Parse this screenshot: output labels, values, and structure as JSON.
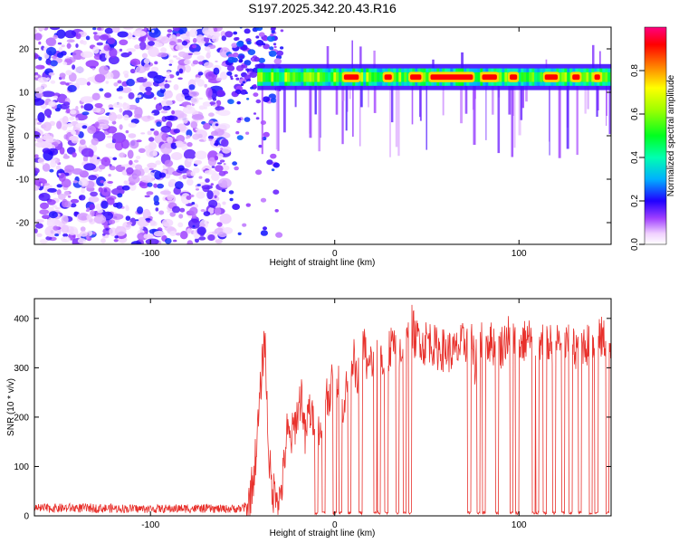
{
  "title": "S197.2025.342.20.43.R16",
  "chart_data": [
    {
      "type": "heatmap",
      "name": "spectrogram",
      "xlabel": "Height of straight line (km)",
      "ylabel": "Frequency (Hz)",
      "xlim": [
        -163,
        150
      ],
      "ylim": [
        -25,
        25
      ],
      "xticks": [
        -100,
        0,
        100
      ],
      "yticks": [
        -20,
        -10,
        0,
        10,
        20
      ],
      "noise_region": {
        "x_range": [
          -163,
          -58
        ],
        "note": "scattered violet/purple noise across all frequencies"
      },
      "transition": {
        "x_range": [
          -58,
          -28
        ]
      },
      "signal_band": {
        "x_range": [
          -42,
          150
        ],
        "center_frequency": 13.5,
        "half_width_hz": 2,
        "peak_segments_x": [
          [
            4,
            14
          ],
          [
            26,
            32
          ],
          [
            40,
            48
          ],
          [
            51,
            76
          ],
          [
            79,
            89
          ],
          [
            94,
            100
          ],
          [
            113,
            122
          ],
          [
            128,
            134
          ],
          [
            140,
            145
          ]
        ]
      },
      "colorbar": {
        "label": "Normalized spectral amplitude",
        "ticks": [
          0.0,
          0.2,
          0.4,
          0.6,
          0.8
        ],
        "range": [
          0.0,
          1.0
        ],
        "colormap": [
          "#ffffff",
          "#f6e2ff",
          "#b060ff",
          "#5000ff",
          "#0000ff",
          "#00c8ff",
          "#00ff80",
          "#80ff00",
          "#ffff00",
          "#ff8000",
          "#ff0000",
          "#ff0080"
        ]
      }
    },
    {
      "type": "line",
      "name": "snr",
      "xlabel": "Height of straight line (km)",
      "ylabel": "SNR (10 * v/v)",
      "xlim": [
        -163,
        150
      ],
      "ylim": [
        0,
        440
      ],
      "xticks": [
        -100,
        0,
        100
      ],
      "yticks": [
        0,
        100,
        200,
        300,
        400
      ],
      "color": "#e8312c",
      "series": [
        {
          "name": "SNR",
          "x": [
            -163,
            -140,
            -120,
            -100,
            -80,
            -60,
            -50,
            -47,
            -44,
            -42,
            -40,
            -38,
            -36,
            -34,
            -32,
            -30,
            -28,
            -26,
            -24,
            -22,
            -20,
            -18,
            -16,
            -14,
            -12,
            -10,
            -8,
            -6,
            -4,
            -2,
            0,
            2,
            4,
            6,
            8,
            10,
            12,
            14,
            16,
            18,
            20,
            22,
            24,
            26,
            28,
            30,
            32,
            34,
            36,
            38,
            40,
            42,
            44,
            46,
            48,
            50,
            55,
            60,
            65,
            70,
            74,
            76,
            78,
            80,
            85,
            90,
            95,
            100,
            105,
            110,
            115,
            120,
            125,
            130,
            135,
            140,
            145,
            150
          ],
          "y": [
            15,
            16,
            15,
            14,
            15,
            14,
            15,
            20,
            80,
            160,
            270,
            370,
            140,
            40,
            60,
            30,
            80,
            170,
            150,
            180,
            210,
            250,
            150,
            220,
            190,
            230,
            160,
            270,
            240,
            260,
            270,
            290,
            220,
            250,
            290,
            330,
            260,
            300,
            350,
            290,
            320,
            280,
            360,
            300,
            330,
            340,
            350,
            310,
            340,
            330,
            360,
            390,
            350,
            370,
            340,
            360,
            340,
            335,
            330,
            350,
            360,
            300,
            350,
            360,
            350,
            340,
            370,
            345,
            360,
            350,
            340,
            355,
            345,
            340,
            350,
            345,
            360,
            350
          ]
        }
      ],
      "dropouts_x": [
        -10,
        -6,
        0,
        3,
        8,
        14,
        22,
        24,
        28,
        34,
        38,
        41,
        73,
        78,
        81,
        88,
        96,
        99,
        108,
        110,
        114,
        119,
        124,
        128,
        133,
        139,
        142,
        148
      ]
    }
  ]
}
